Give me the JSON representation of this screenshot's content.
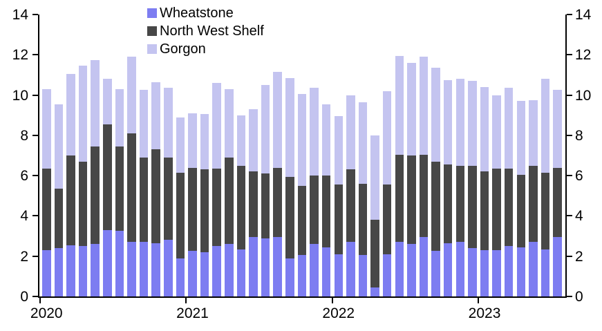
{
  "chart_data": {
    "type": "bar",
    "stacked": true,
    "title": "",
    "xlabel": "",
    "ylabel": "",
    "ylim": [
      0,
      14
    ],
    "yticks": [
      0,
      2,
      4,
      6,
      8,
      10,
      12,
      14
    ],
    "grid": false,
    "legend_position": "top-inside",
    "axis_color": "#000000",
    "x": [
      "Jan 2020",
      "Feb 2020",
      "Mar 2020",
      "Apr 2020",
      "May 2020",
      "Jun 2020",
      "Jul 2020",
      "Aug 2020",
      "Sep 2020",
      "Oct 2020",
      "Nov 2020",
      "Dec 2020",
      "Jan 2021",
      "Feb 2021",
      "Mar 2021",
      "Apr 2021",
      "May 2021",
      "Jun 2021",
      "Jul 2021",
      "Aug 2021",
      "Sep 2021",
      "Oct 2021",
      "Nov 2021",
      "Dec 2021",
      "Jan 2022",
      "Feb 2022",
      "Mar 2022",
      "Apr 2022",
      "May 2022",
      "Jun 2022",
      "Jul 2022",
      "Aug 2022",
      "Sep 2022",
      "Oct 2022",
      "Nov 2022",
      "Dec 2022",
      "Jan 2023",
      "Feb 2023",
      "Mar 2023",
      "Apr 2023",
      "May 2023",
      "Jun 2023",
      "Jul 2023"
    ],
    "x_year_ticks": [
      "2020",
      "2021",
      "2022",
      "2023"
    ],
    "series": [
      {
        "name": "Wheatstone",
        "color": "#7d7df1",
        "values": [
          2.3,
          2.4,
          2.55,
          2.5,
          2.6,
          3.3,
          3.25,
          2.7,
          2.7,
          2.65,
          2.8,
          1.9,
          2.25,
          2.2,
          2.5,
          2.6,
          2.35,
          2.95,
          2.9,
          2.95,
          1.9,
          2.05,
          2.6,
          2.45,
          2.1,
          2.7,
          2.05,
          0.45,
          2.1,
          2.7,
          2.6,
          2.95,
          2.25,
          2.65,
          2.7,
          2.4,
          2.3,
          2.3,
          2.5,
          2.45,
          2.7,
          2.35,
          2.95
        ]
      },
      {
        "name": "North West Shelf",
        "color": "#474747",
        "values": [
          4.05,
          2.95,
          4.45,
          4.2,
          4.85,
          5.25,
          4.2,
          5.4,
          4.2,
          4.65,
          4.1,
          4.25,
          4.15,
          4.1,
          3.85,
          4.3,
          4.15,
          3.25,
          3.2,
          3.45,
          4.05,
          3.45,
          3.4,
          3.55,
          3.45,
          3.6,
          3.55,
          3.35,
          3.45,
          4.35,
          4.4,
          4.1,
          4.45,
          3.9,
          3.8,
          4.1,
          3.9,
          4.05,
          3.85,
          3.6,
          3.8,
          3.8,
          3.45
        ]
      },
      {
        "name": "Gorgon",
        "color": "#c4c4f0",
        "values": [
          3.95,
          4.2,
          4.05,
          4.75,
          4.3,
          2.25,
          2.85,
          3.8,
          3.35,
          3.35,
          3.45,
          2.75,
          2.7,
          2.75,
          4.25,
          3.4,
          2.5,
          3.1,
          4.4,
          4.75,
          4.9,
          4.55,
          4.35,
          3.55,
          3.4,
          3.7,
          4.05,
          4.2,
          4.65,
          4.9,
          4.6,
          4.85,
          4.65,
          4.2,
          4.3,
          4.2,
          4.2,
          3.65,
          4.0,
          3.65,
          3.25,
          4.65,
          3.85
        ]
      }
    ]
  }
}
